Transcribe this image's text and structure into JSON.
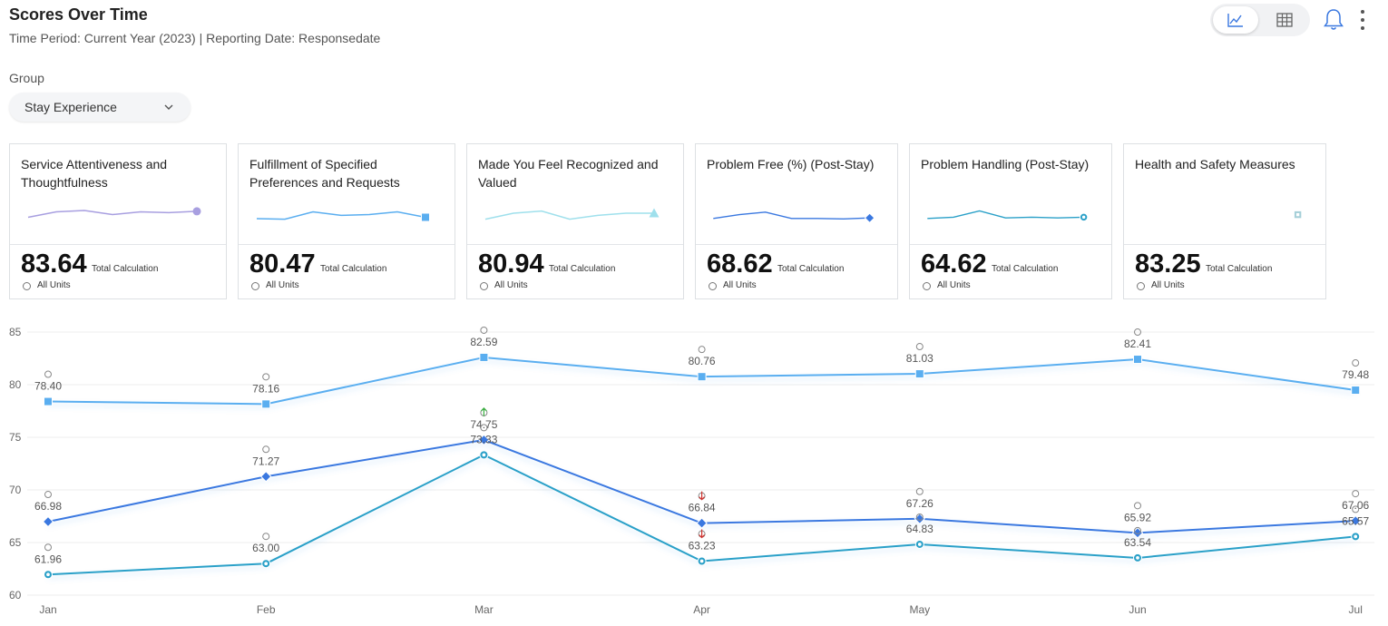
{
  "header": {
    "title": "Scores Over Time",
    "subtitle": "Time Period: Current Year (2023) | Reporting Date: Responsedate"
  },
  "view_toggle": {
    "options": [
      "line-chart-icon",
      "table-icon"
    ],
    "active": "line-chart-icon"
  },
  "group": {
    "label": "Group",
    "selected": "Stay Experience"
  },
  "cards": [
    {
      "title": "Service Attentiveness and Thoughtfulness",
      "value": "83.64",
      "calc_label": "Total Calculation",
      "units_label": "All Units",
      "dimmed": true,
      "color": "#8b7fd6",
      "marker": "circle",
      "spark": [
        0.55,
        0.35,
        0.3,
        0.45,
        0.35,
        0.38,
        0.33
      ]
    },
    {
      "title": "Fulfillment of Specified Preferences and Requests",
      "value": "80.47",
      "calc_label": "Total Calculation",
      "units_label": "All Units",
      "dimmed": false,
      "color": "#5aaef0",
      "marker": "square",
      "spark": [
        0.6,
        0.62,
        0.35,
        0.48,
        0.45,
        0.35,
        0.55
      ]
    },
    {
      "title": "Made You Feel Recognized and Valued",
      "value": "80.94",
      "calc_label": "Total Calculation",
      "units_label": "All Units",
      "dimmed": true,
      "color": "#7fd6e6",
      "marker": "triangle",
      "spark": [
        0.62,
        0.4,
        0.32,
        0.62,
        0.48,
        0.4,
        0.4
      ]
    },
    {
      "title": "Problem Free (%) (Post-Stay)",
      "value": "68.62",
      "calc_label": "Total Calculation",
      "units_label": "All Units",
      "dimmed": false,
      "color": "#3a78e0",
      "marker": "diamond",
      "spark": [
        0.6,
        0.45,
        0.35,
        0.6,
        0.6,
        0.62,
        0.58
      ]
    },
    {
      "title": "Problem Handling (Post-Stay)",
      "value": "64.62",
      "calc_label": "Total Calculation",
      "units_label": "All Units",
      "dimmed": false,
      "color": "#2aa0c8",
      "marker": "circle-dot",
      "spark": [
        0.6,
        0.55,
        0.3,
        0.58,
        0.55,
        0.58,
        0.55
      ]
    },
    {
      "title": "Health and Safety Measures",
      "value": "83.25",
      "calc_label": "Total Calculation",
      "units_label": "All Units",
      "dimmed": true,
      "color": "#88c0cc",
      "marker": "square-dot",
      "spark": []
    }
  ],
  "chart_data": {
    "type": "line",
    "categories": [
      "Jan",
      "Feb",
      "Mar",
      "Apr",
      "May",
      "Jun",
      "Jul"
    ],
    "ylim": [
      60,
      85
    ],
    "yticks": [
      60,
      65,
      70,
      75,
      80,
      85
    ],
    "series": [
      {
        "name": "Fulfillment of Specified Preferences and Requests",
        "color": "#5aaef0",
        "marker": "square",
        "values": [
          78.4,
          78.16,
          82.59,
          80.76,
          81.03,
          82.41,
          79.48
        ],
        "labels": [
          "78.40",
          "78.16",
          "82.59",
          "80.76",
          "81.03",
          "82.41",
          "79.48"
        ]
      },
      {
        "name": "Problem Free (%) (Post-Stay)",
        "color": "#3a78e0",
        "marker": "diamond",
        "values": [
          66.98,
          71.27,
          74.75,
          66.84,
          67.26,
          65.92,
          67.06
        ],
        "labels": [
          "66.98",
          "71.27",
          "74.75",
          "66.84",
          "67.26",
          "65.92",
          "67.06"
        ]
      },
      {
        "name": "Problem Handling (Post-Stay)",
        "color": "#2aa0c8",
        "marker": "circle-dot",
        "values": [
          61.96,
          63.0,
          73.33,
          63.23,
          64.83,
          63.54,
          65.57
        ],
        "labels": [
          "61.96",
          "63.00",
          "73.33",
          "63.23",
          "64.83",
          "63.54",
          "65.57"
        ]
      }
    ],
    "trend_arrows": [
      {
        "month": "Mar",
        "series": 1,
        "direction": "up",
        "color": "#3cb043"
      },
      {
        "month": "Apr",
        "series": 1,
        "direction": "down",
        "color": "#d0312d"
      },
      {
        "month": "Apr",
        "series": 2,
        "direction": "down",
        "color": "#d0312d"
      }
    ]
  }
}
